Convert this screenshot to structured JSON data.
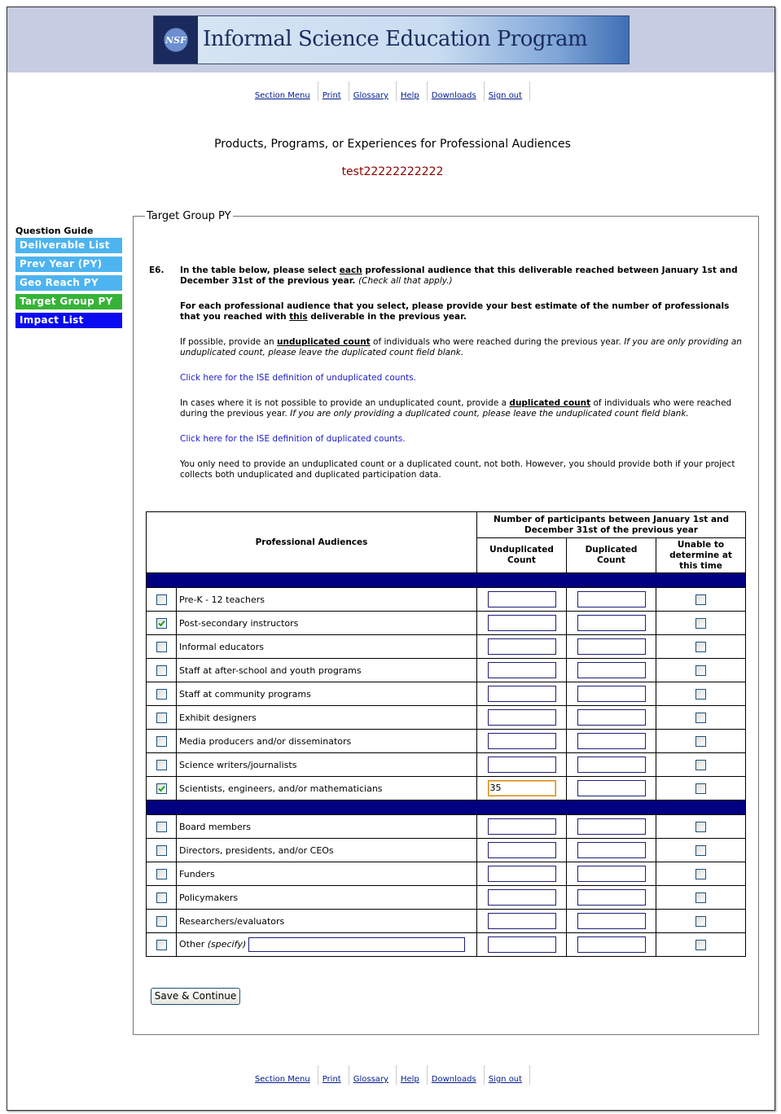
{
  "header": {
    "logo_badge": "NSF",
    "logo_title": "Informal Science Education Program"
  },
  "nav": [
    "Section Menu",
    "Print",
    "Glossary",
    "Help",
    "Downloads",
    "Sign out"
  ],
  "page": {
    "title": "Products, Programs, or Experiences for Professional Audiences",
    "subtitle": "test22222222222"
  },
  "sidebar": {
    "heading": "Question Guide",
    "items": [
      {
        "label": "Deliverable List",
        "color": "#4db4ef"
      },
      {
        "label": "Prev Year (PY)",
        "color": "#4db4ef"
      },
      {
        "label": "Geo Reach PY",
        "color": "#4db4ef"
      },
      {
        "label": "Target Group PY",
        "color": "#36b336"
      },
      {
        "label": "Impact List",
        "color": "#0a0af0"
      }
    ]
  },
  "form": {
    "legend": "Target Group PY",
    "question_number": "E6.",
    "paragraphs": [
      [
        {
          "text": "In the table below, please select ",
          "style": "bold"
        },
        {
          "text": "each",
          "style": "bold underline"
        },
        {
          "text": " professional audience that this deliverable reached between January 1st and December 31st of the previous year. ",
          "style": "bold"
        },
        {
          "text": "(Check all that apply.)",
          "style": "italic"
        }
      ],
      [
        {
          "text": "For each professional audience that you select, please provide your best estimate of the number of professionals that you reached with ",
          "style": "bold"
        },
        {
          "text": "this",
          "style": "bold underline"
        },
        {
          "text": " deliverable in the previous year.",
          "style": "bold"
        }
      ],
      [
        {
          "text": "If possible, provide an "
        },
        {
          "text": "unduplicated count",
          "style": "bold underline"
        },
        {
          "text": " of individuals who were reached during the previous year. "
        },
        {
          "text": "If you are only providing an unduplicated count, please leave the duplicated count field blank.",
          "style": "italic"
        }
      ],
      [
        {
          "text": "Click here for the ISE definition of unduplicated counts.",
          "style": "link"
        }
      ],
      [
        {
          "text": "In cases where it is not possible to provide an unduplicated count, provide a "
        },
        {
          "text": "duplicated count",
          "style": "bold underline"
        },
        {
          "text": " of individuals who were reached during the previous year. "
        },
        {
          "text": "If you are only providing a duplicated count, please leave the unduplicated count field blank.",
          "style": "italic"
        }
      ],
      [
        {
          "text": "Click here for the ISE definition of duplicated counts.",
          "style": "link"
        }
      ],
      [
        {
          "text": "You only need to provide an unduplicated count or a duplicated count, not both. However, you should provide both if your project collects both unduplicated and duplicated participation data."
        }
      ]
    ],
    "table": {
      "header": {
        "audiences": "Professional Audiences",
        "group": "Number of participants between January 1st and December 31st of the previous year",
        "unduplicated": "Unduplicated Count",
        "duplicated": "Duplicated Count",
        "unable": "Unable to determine at this time"
      },
      "sections": [
        [
          {
            "label": "Pre-K - 12 teachers",
            "checked": false
          },
          {
            "label": "Post-secondary instructors",
            "checked": true
          },
          {
            "label": "Informal educators",
            "checked": false
          },
          {
            "label": "Staff at after-school and youth programs",
            "checked": false
          },
          {
            "label": "Staff at community programs",
            "checked": false
          },
          {
            "label": "Exhibit designers",
            "checked": false
          },
          {
            "label": "Media producers and/or disseminators",
            "checked": false
          },
          {
            "label": "Science writers/journalists",
            "checked": false
          },
          {
            "label": "Scientists, engineers, and/or mathematicians",
            "checked": true,
            "unduplicated": 35
          }
        ],
        [
          {
            "label": "Board members",
            "checked": false
          },
          {
            "label": "Directors, presidents, and/or CEOs",
            "checked": false
          },
          {
            "label": "Funders",
            "checked": false
          },
          {
            "label": "Policymakers",
            "checked": false
          },
          {
            "label": "Researchers/evaluators",
            "checked": false
          },
          {
            "label": "Other",
            "note": "(specify)",
            "checked": false
          }
        ]
      ]
    },
    "submit": "Save & Continue"
  }
}
